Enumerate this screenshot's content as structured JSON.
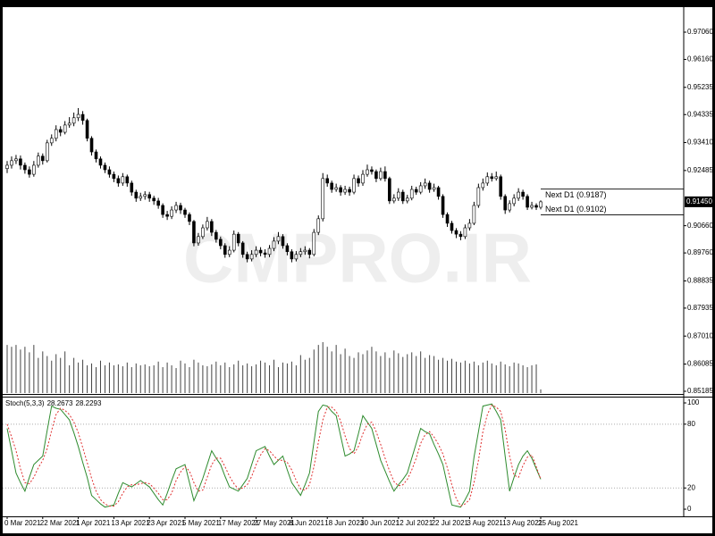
{
  "chart_data": [
    {
      "type": "candlestick",
      "watermark": "CMPRO.IR",
      "categories": [
        "0 Mar 2021",
        null,
        null,
        null,
        null,
        null,
        null,
        null,
        "22 Mar 2021",
        null,
        null,
        null,
        null,
        null,
        null,
        null,
        "1 Apr 2021",
        null,
        null,
        null,
        null,
        null,
        null,
        null,
        "13 Apr 2021",
        null,
        null,
        null,
        null,
        null,
        null,
        null,
        "23 Apr 2021",
        null,
        null,
        null,
        null,
        null,
        null,
        null,
        "5 May 2021",
        null,
        null,
        null,
        null,
        null,
        null,
        null,
        "17 May 2021",
        null,
        null,
        null,
        null,
        null,
        null,
        null,
        "27 May 2021",
        null,
        null,
        null,
        null,
        null,
        null,
        null,
        "8 Jun 2021",
        null,
        null,
        null,
        null,
        null,
        null,
        null,
        "18 Jun 2021",
        null,
        null,
        null,
        null,
        null,
        null,
        null,
        "30 Jun 2021",
        null,
        null,
        null,
        null,
        null,
        null,
        null,
        "12 Jul 2021",
        null,
        null,
        null,
        null,
        null,
        null,
        null,
        "22 Jul 2021",
        null,
        null,
        null,
        null,
        null,
        null,
        null,
        "3 Aug 2021",
        null,
        null,
        null,
        null,
        null,
        null,
        null,
        "13 Aug 2021",
        null,
        null,
        null,
        null,
        null,
        null,
        null,
        "25 Aug 2021"
      ],
      "open": [
        0.9255,
        0.9266,
        0.9281,
        0.9287,
        0.9266,
        0.9251,
        0.9236,
        0.9266,
        0.9296,
        0.9281,
        0.934,
        0.9355,
        0.9384,
        0.9375,
        0.9399,
        0.9405,
        0.9423,
        0.9434,
        0.9414,
        0.9355,
        0.931,
        0.9287,
        0.9266,
        0.9251,
        0.9236,
        0.9222,
        0.9207,
        0.9228,
        0.9207,
        0.9177,
        0.9157,
        0.9163,
        0.9169,
        0.9157,
        0.9148,
        0.9133,
        0.9103,
        0.9097,
        0.9118,
        0.9133,
        0.9118,
        0.9103,
        0.908,
        0.9009,
        0.903,
        0.9059,
        0.908,
        0.9044,
        0.9021,
        0.9,
        0.8971,
        0.8985,
        0.9038,
        0.9009,
        0.8971,
        0.8956,
        0.8971,
        0.8985,
        0.8976,
        0.8971,
        0.8991,
        0.9015,
        0.903,
        0.9,
        0.898,
        0.8956,
        0.8971,
        0.898,
        0.8985,
        0.8971,
        0.9044,
        0.9089,
        0.9222,
        0.9207,
        0.9186,
        0.9192,
        0.9177,
        0.9186,
        0.9177,
        0.9222,
        0.9207,
        0.9236,
        0.9251,
        0.9245,
        0.9222,
        0.9245,
        0.9222,
        0.9148,
        0.9157,
        0.9177,
        0.9148,
        0.9157,
        0.9186,
        0.9177,
        0.9198,
        0.9207,
        0.9186,
        0.9192,
        0.9163,
        0.9103,
        0.9074,
        0.905,
        0.9038,
        0.903,
        0.9059,
        0.9074,
        0.9133,
        0.9192,
        0.9207,
        0.9228,
        0.9222,
        0.9228,
        0.9163,
        0.9118,
        0.9139,
        0.9157,
        0.9177,
        0.9163,
        0.9127,
        0.9133,
        0.9127
      ],
      "high": [
        0.928,
        0.9295,
        0.93,
        0.9298,
        0.9275,
        0.9262,
        0.928,
        0.9308,
        0.9305,
        0.935,
        0.9368,
        0.9398,
        0.9395,
        0.9412,
        0.9425,
        0.944,
        0.9455,
        0.9445,
        0.942,
        0.9362,
        0.9318,
        0.9295,
        0.9275,
        0.9262,
        0.9245,
        0.9232,
        0.924,
        0.9235,
        0.9215,
        0.9185,
        0.9175,
        0.918,
        0.9178,
        0.9165,
        0.9158,
        0.914,
        0.9115,
        0.913,
        0.9145,
        0.9142,
        0.9125,
        0.911,
        0.9085,
        0.9042,
        0.907,
        0.9095,
        0.9088,
        0.9052,
        0.903,
        0.9008,
        0.8998,
        0.905,
        0.9045,
        0.9015,
        0.898,
        0.8985,
        0.8998,
        0.8995,
        0.8988,
        0.9002,
        0.9028,
        0.9045,
        0.9038,
        0.9008,
        0.8988,
        0.8982,
        0.8992,
        0.8998,
        0.8992,
        0.9055,
        0.91,
        0.924,
        0.9235,
        0.9215,
        0.9205,
        0.92,
        0.9198,
        0.9195,
        0.9235,
        0.9232,
        0.925,
        0.9268,
        0.9262,
        0.9252,
        0.9258,
        0.9262,
        0.9228,
        0.917,
        0.919,
        0.9185,
        0.9168,
        0.9198,
        0.9195,
        0.921,
        0.9222,
        0.9215,
        0.9205,
        0.9198,
        0.917,
        0.911,
        0.9082,
        0.9058,
        0.9048,
        0.907,
        0.9088,
        0.9145,
        0.9205,
        0.9222,
        0.9242,
        0.924,
        0.9245,
        0.9235,
        0.917,
        0.915,
        0.917,
        0.919,
        0.9185,
        0.917,
        0.9145,
        0.914,
        0.915
      ],
      "low": [
        0.924,
        0.9255,
        0.927,
        0.9252,
        0.9238,
        0.9225,
        0.9228,
        0.9258,
        0.9268,
        0.9275,
        0.933,
        0.9345,
        0.9362,
        0.9368,
        0.939,
        0.9395,
        0.9412,
        0.94,
        0.9345,
        0.9298,
        0.9275,
        0.9255,
        0.924,
        0.9225,
        0.921,
        0.9195,
        0.9198,
        0.9195,
        0.9165,
        0.9145,
        0.9148,
        0.9152,
        0.9145,
        0.9135,
        0.9122,
        0.9092,
        0.9085,
        0.9088,
        0.9108,
        0.9105,
        0.9092,
        0.9068,
        0.8998,
        0.9,
        0.9022,
        0.905,
        0.9032,
        0.901,
        0.8988,
        0.896,
        0.8962,
        0.8978,
        0.8998,
        0.896,
        0.8945,
        0.8948,
        0.8962,
        0.8965,
        0.896,
        0.8962,
        0.8982,
        0.9005,
        0.899,
        0.8968,
        0.8945,
        0.8948,
        0.8962,
        0.897,
        0.8958,
        0.8965,
        0.9035,
        0.908,
        0.9195,
        0.9175,
        0.9178,
        0.9165,
        0.9168,
        0.9165,
        0.917,
        0.9195,
        0.9198,
        0.9228,
        0.9235,
        0.921,
        0.9215,
        0.9212,
        0.9138,
        0.914,
        0.9148,
        0.9138,
        0.914,
        0.915,
        0.9168,
        0.917,
        0.9188,
        0.9175,
        0.9178,
        0.9152,
        0.9092,
        0.9062,
        0.904,
        0.9025,
        0.9018,
        0.9022,
        0.905,
        0.9068,
        0.9125,
        0.9182,
        0.9198,
        0.9212,
        0.9215,
        0.9152,
        0.9105,
        0.911,
        0.913,
        0.9148,
        0.9152,
        0.9118,
        0.912,
        0.9118,
        0.912
      ],
      "close": [
        0.9266,
        0.9281,
        0.9287,
        0.9266,
        0.9251,
        0.9236,
        0.9266,
        0.9296,
        0.9281,
        0.934,
        0.9355,
        0.9384,
        0.9375,
        0.9399,
        0.9405,
        0.9423,
        0.9434,
        0.9414,
        0.9355,
        0.931,
        0.9287,
        0.9266,
        0.9251,
        0.9236,
        0.9222,
        0.9207,
        0.9228,
        0.9207,
        0.9177,
        0.9157,
        0.9163,
        0.9169,
        0.9157,
        0.9148,
        0.9133,
        0.9103,
        0.9097,
        0.9118,
        0.9133,
        0.9118,
        0.9103,
        0.908,
        0.9009,
        0.903,
        0.9059,
        0.908,
        0.9044,
        0.9021,
        0.9,
        0.8971,
        0.8985,
        0.9038,
        0.9009,
        0.8971,
        0.8956,
        0.8971,
        0.8985,
        0.8976,
        0.8971,
        0.8991,
        0.9015,
        0.903,
        0.9,
        0.898,
        0.8956,
        0.8971,
        0.898,
        0.8985,
        0.8971,
        0.9044,
        0.9089,
        0.9222,
        0.9207,
        0.9186,
        0.9192,
        0.9177,
        0.9186,
        0.9177,
        0.9222,
        0.9207,
        0.9236,
        0.9251,
        0.9245,
        0.9222,
        0.9245,
        0.9222,
        0.9148,
        0.9157,
        0.9177,
        0.9148,
        0.9157,
        0.9186,
        0.9177,
        0.9198,
        0.9207,
        0.9186,
        0.9192,
        0.9163,
        0.9103,
        0.9074,
        0.905,
        0.9038,
        0.903,
        0.9059,
        0.9074,
        0.9133,
        0.9192,
        0.9207,
        0.9228,
        0.9222,
        0.9228,
        0.9163,
        0.9118,
        0.9139,
        0.9157,
        0.9177,
        0.9163,
        0.9127,
        0.9133,
        0.9127,
        0.9145
      ],
      "volume": [
        52,
        50,
        52,
        47,
        50,
        44,
        52,
        38,
        45,
        40,
        35,
        42,
        38,
        45,
        30,
        38,
        33,
        36,
        30,
        32,
        28,
        35,
        30,
        33,
        30,
        31,
        29,
        33,
        28,
        32,
        30,
        31,
        29,
        30,
        34,
        28,
        33,
        30,
        27,
        35,
        32,
        28,
        36,
        33,
        30,
        29,
        31,
        34,
        30,
        33,
        28,
        31,
        35,
        30,
        32,
        29,
        31,
        35,
        33,
        30,
        36,
        28,
        33,
        32,
        34,
        30,
        41,
        36,
        38,
        47,
        52,
        55,
        50,
        45,
        52,
        42,
        48,
        40,
        38,
        44,
        42,
        46,
        50,
        45,
        40,
        44,
        38,
        46,
        43,
        39,
        42,
        44,
        40,
        45,
        38,
        41,
        40,
        36,
        38,
        35,
        37,
        34,
        33,
        35,
        32,
        34,
        30,
        33,
        35,
        32,
        30,
        34,
        31,
        29,
        33,
        32,
        30,
        28,
        30,
        31,
        4
      ],
      "colors": {
        "up": "#ffffff",
        "down": "#000000",
        "outline": "#000000",
        "volume": "#444444"
      },
      "ylim": [
        0.85096,
        0.97887
      ],
      "yticks": [
        {
          "value": 0.9706,
          "label": "0.97060"
        },
        {
          "value": 0.9616,
          "label": "0.96160"
        },
        {
          "value": 0.95235,
          "label": "0.95235"
        },
        {
          "value": 0.94335,
          "label": "0.94335"
        },
        {
          "value": 0.9341,
          "label": "0.93410"
        },
        {
          "value": 0.92485,
          "label": "0.92485"
        },
        {
          "value": 0.9066,
          "label": "0.90660"
        },
        {
          "value": 0.8976,
          "label": "0.89760"
        },
        {
          "value": 0.88835,
          "label": "0.88835"
        },
        {
          "value": 0.87935,
          "label": "0.87935"
        },
        {
          "value": 0.8701,
          "label": "0.87010"
        },
        {
          "value": 0.86085,
          "label": "0.86085"
        },
        {
          "value": 0.85185,
          "label": "0.85185"
        }
      ],
      "current_price": {
        "value": 0.9145,
        "label": "0.91450"
      },
      "price_lines": [
        {
          "label": "Next D1 (0.9187)",
          "value": 0.9187
        },
        {
          "label": "Next D1 (0.9102)",
          "value": 0.9102
        }
      ]
    },
    {
      "type": "line",
      "title": "Stoch(5,3,3)",
      "series": [
        {
          "color": "#2e8b2e",
          "values": [
            76,
            55,
            34,
            25,
            17,
            30,
            42,
            46,
            50,
            74,
            97,
            95,
            94,
            89,
            84,
            72,
            59,
            44,
            30,
            13,
            9,
            5,
            2,
            3,
            4,
            15,
            25,
            23,
            21,
            24,
            27,
            24,
            21,
            15,
            9,
            4,
            15,
            27,
            38,
            40,
            42,
            25,
            8,
            18,
            29,
            42,
            55,
            48,
            42,
            31,
            21,
            19,
            17,
            23,
            29,
            42,
            55,
            57,
            59,
            50,
            42,
            46,
            50,
            37,
            25,
            19,
            13,
            23,
            34,
            63,
            92,
            98,
            97,
            92,
            88,
            69,
            50,
            52,
            55,
            71,
            88,
            82,
            76,
            61,
            46,
            36,
            26,
            17,
            23,
            28,
            34,
            48,
            62,
            76,
            73,
            71,
            61,
            52,
            42,
            23,
            4,
            3,
            2,
            9,
            17,
            49,
            73,
            97,
            98,
            99,
            92,
            84,
            50,
            17,
            30,
            42,
            50,
            55,
            48,
            38,
            28.2673
          ]
        },
        {
          "color": "#e03030",
          "dash": true,
          "values": [
            80,
            68,
            55,
            38,
            25,
            24,
            30,
            39,
            46,
            57,
            74,
            89,
            95,
            93,
            89,
            82,
            72,
            58,
            44,
            29,
            17,
            9,
            5,
            3,
            3,
            7,
            15,
            21,
            23,
            23,
            24,
            25,
            24,
            20,
            15,
            9,
            9,
            15,
            27,
            35,
            40,
            36,
            25,
            17,
            18,
            30,
            42,
            48,
            48,
            40,
            31,
            24,
            19,
            20,
            23,
            31,
            42,
            51,
            57,
            55,
            50,
            46,
            46,
            44,
            37,
            27,
            19,
            18,
            23,
            40,
            63,
            84,
            96,
            96,
            92,
            83,
            69,
            57,
            52,
            59,
            71,
            80,
            82,
            73,
            61,
            48,
            36,
            26,
            22,
            23,
            28,
            37,
            48,
            62,
            70,
            73,
            68,
            61,
            52,
            39,
            23,
            10,
            3,
            5,
            9,
            25,
            46,
            73,
            89,
            98,
            96,
            92,
            75,
            50,
            32,
            30,
            41,
            49,
            51,
            40,
            28.2293
          ]
        }
      ],
      "ylim": [
        -6.7,
        105.9
      ],
      "yticks": [
        0,
        20,
        80,
        100
      ],
      "levels": [
        20,
        80
      ]
    }
  ]
}
